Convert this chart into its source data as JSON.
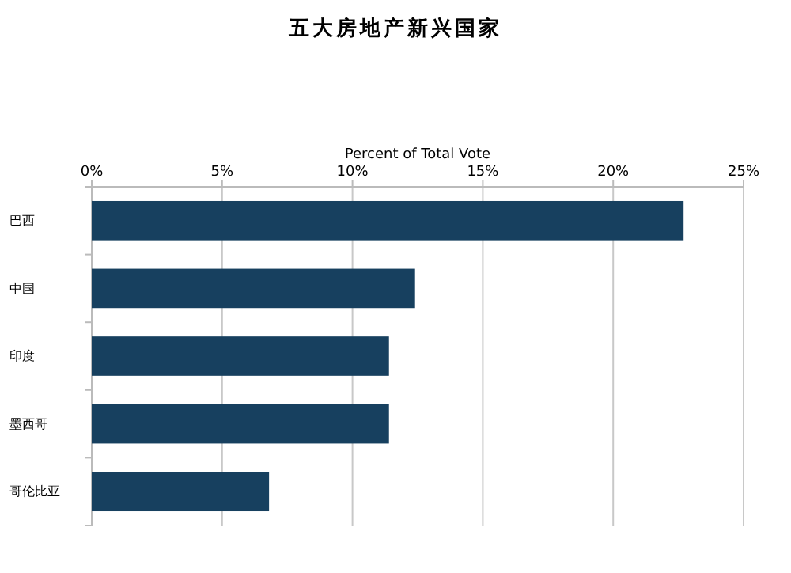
{
  "chart_data": {
    "type": "bar",
    "orientation": "horizontal",
    "title": "五大房地产新兴国家",
    "xlabel": "Percent of Total Vote",
    "categories": [
      "巴西",
      "中国",
      "印度",
      "墨西哥",
      "哥伦比亚"
    ],
    "values": [
      22.7,
      12.4,
      11.4,
      11.4,
      6.8
    ],
    "color": "#17405f",
    "xlim": [
      0,
      25
    ],
    "xticks": [
      {
        "value": 0,
        "label": "0%"
      },
      {
        "value": 5,
        "label": "5%"
      },
      {
        "value": 10,
        "label": "10%"
      },
      {
        "value": 15,
        "label": "15%"
      },
      {
        "value": 20,
        "label": "20%"
      },
      {
        "value": 25,
        "label": "25%"
      }
    ],
    "grid": "x"
  }
}
